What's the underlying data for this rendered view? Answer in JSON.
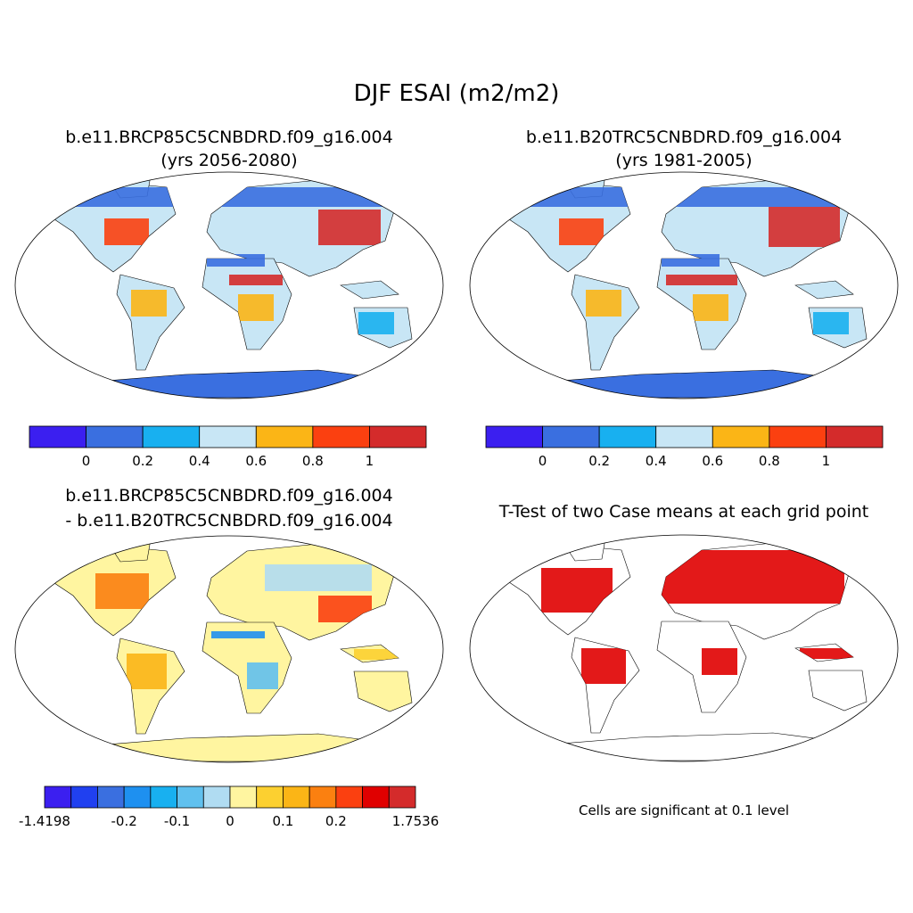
{
  "title": "DJF ESAI (m2/m2)",
  "panels": [
    {
      "title_lines": [
        "b.e11.BRCP85C5CNBDRD.f09_g16.004",
        "(yrs 2056-2080)"
      ],
      "colorbar": {
        "colors": [
          "#3b1ff0",
          "#3a6fe0",
          "#18b0f0",
          "#c8e6f5",
          "#fbb516",
          "#fb4010",
          "#d42b2b"
        ],
        "labels": [
          0,
          0.2,
          0.4,
          0.6,
          0.8,
          1
        ]
      }
    },
    {
      "title_lines": [
        "b.e11.B20TRC5CNBDRD.f09_g16.004",
        "(yrs 1981-2005)"
      ],
      "colorbar": {
        "colors": [
          "#3b1ff0",
          "#3a6fe0",
          "#18b0f0",
          "#c8e6f5",
          "#fbb516",
          "#fb4010",
          "#d42b2b"
        ],
        "labels": [
          0,
          0.2,
          0.4,
          0.6,
          0.8,
          1
        ]
      }
    },
    {
      "title_lines": [
        "b.e11.BRCP85C5CNBDRD.f09_g16.004",
        "- b.e11.B20TRC5CNBDRD.f09_g16.004"
      ],
      "colorbar": {
        "colors": [
          "#3b1ff0",
          "#2040f0",
          "#3a6fe0",
          "#1e90f0",
          "#18b0f0",
          "#60c0ee",
          "#b0dcf2",
          "#fff5a0",
          "#fcd030",
          "#fbb516",
          "#fb8010",
          "#fb4010",
          "#e00000",
          "#d42b2b"
        ],
        "labels": [
          -1.4198,
          -0.2,
          -0.1,
          0,
          0.1,
          0.2,
          1.7536
        ]
      }
    },
    {
      "title_lines": [
        "T-Test of two Case means at each grid point"
      ],
      "note": "Cells are significant at 0.1 level"
    }
  ]
}
